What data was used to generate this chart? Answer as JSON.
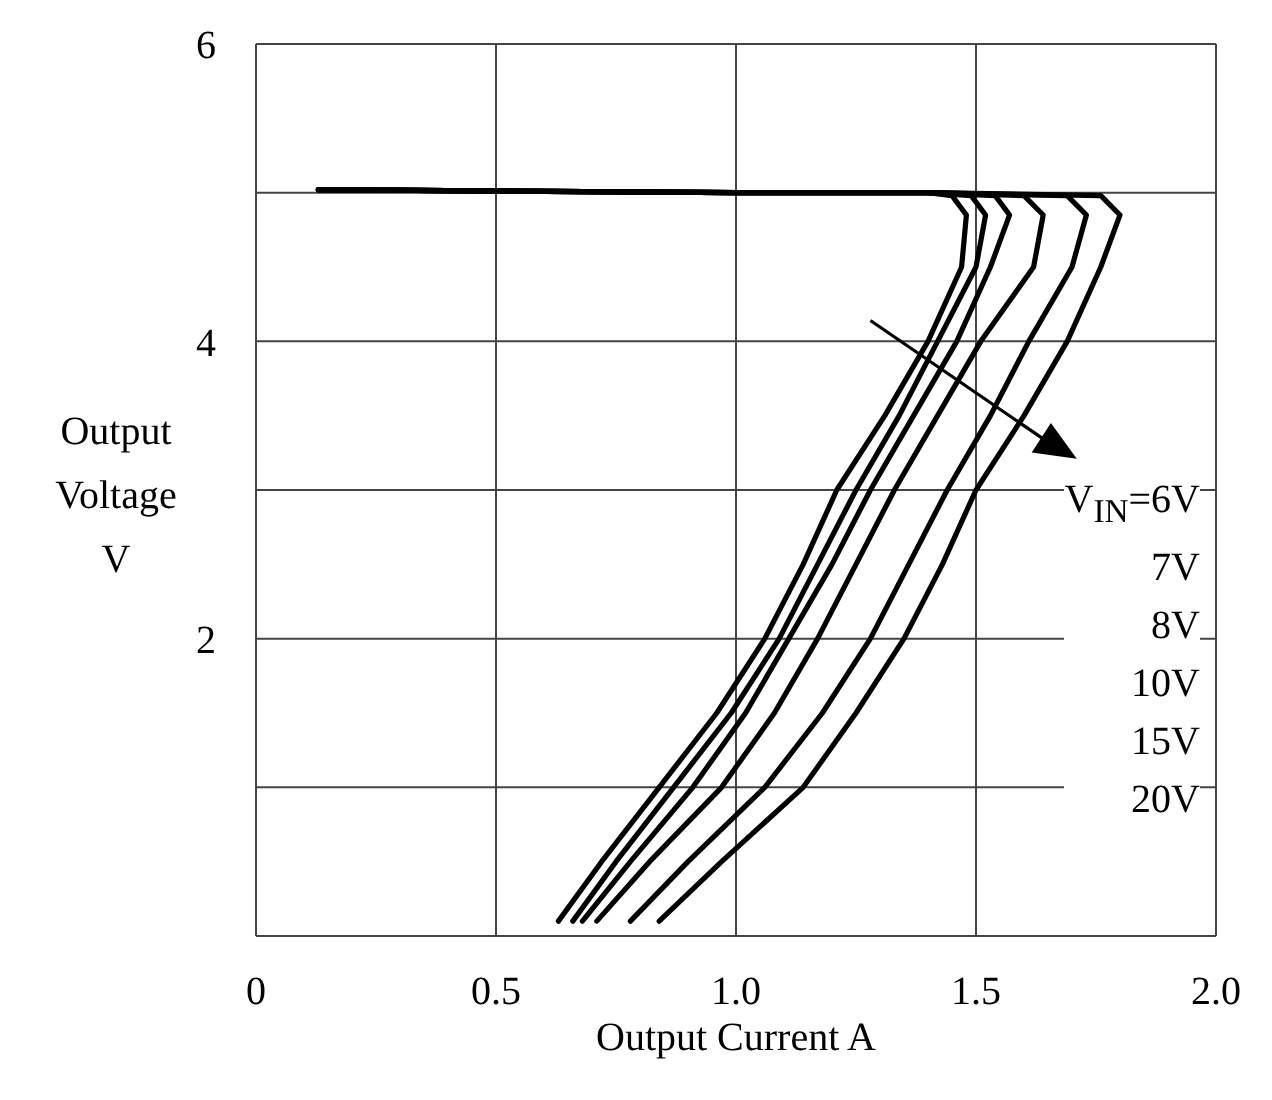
{
  "chart_data": {
    "type": "line",
    "xlabel": "Output Current A",
    "ylabel": "Output Voltage V",
    "xlim": [
      0,
      2
    ],
    "ylim": [
      0,
      6
    ],
    "xticks": [
      0,
      0.5,
      {
        "value": 1,
        "label": "1.0"
      },
      {
        "value": 1.5,
        "label": "1.5"
      },
      {
        "value": 2,
        "label": "2.0"
      }
    ],
    "yticks": [
      {
        "value": 0,
        "label": null
      },
      {
        "value": 1,
        "label": null
      },
      2,
      {
        "value": 3,
        "label": null
      },
      4,
      {
        "value": 5,
        "label": null
      },
      6
    ],
    "grid": true,
    "legend": "right",
    "series": [
      {
        "name": "V$_{IN}$=6V",
        "color": "#000000",
        "x": [
          0.13,
          1.0,
          1.4,
          1.45,
          1.48,
          1.47,
          1.4,
          1.31,
          1.21,
          1.14,
          1.06,
          0.96,
          0.84,
          0.72,
          0.63
        ],
        "values": [
          5.02,
          5.0,
          5.0,
          4.98,
          4.85,
          4.5,
          4.0,
          3.5,
          3.0,
          2.5,
          2.0,
          1.5,
          1.0,
          0.5,
          0.1
        ]
      },
      {
        "name": "7V",
        "color": "#000000",
        "x": [
          0.13,
          1.0,
          1.4,
          1.49,
          1.52,
          1.5,
          1.42,
          1.34,
          1.25,
          1.17,
          1.09,
          0.99,
          0.87,
          0.75,
          0.66
        ],
        "values": [
          5.02,
          5.0,
          5.0,
          4.98,
          4.85,
          4.5,
          4.0,
          3.5,
          3.0,
          2.5,
          2.0,
          1.5,
          1.0,
          0.5,
          0.1
        ]
      },
      {
        "name": "8V",
        "color": "#000000",
        "x": [
          0.13,
          1.0,
          1.4,
          1.54,
          1.57,
          1.53,
          1.46,
          1.37,
          1.28,
          1.2,
          1.11,
          1.02,
          0.91,
          0.78,
          0.68
        ],
        "values": [
          5.02,
          5.0,
          5.0,
          4.98,
          4.85,
          4.5,
          4.0,
          3.5,
          3.0,
          2.5,
          2.0,
          1.5,
          1.0,
          0.5,
          0.1
        ]
      },
      {
        "name": "10V",
        "color": "#000000",
        "x": [
          0.13,
          1.0,
          1.4,
          1.6,
          1.64,
          1.62,
          1.51,
          1.42,
          1.33,
          1.25,
          1.17,
          1.08,
          0.97,
          0.82,
          0.71
        ],
        "values": [
          5.02,
          5.0,
          5.0,
          4.98,
          4.85,
          4.5,
          4.0,
          3.5,
          3.0,
          2.5,
          2.0,
          1.5,
          1.0,
          0.5,
          0.1
        ]
      },
      {
        "name": "15V",
        "color": "#000000",
        "x": [
          0.13,
          1.0,
          1.4,
          1.69,
          1.73,
          1.7,
          1.61,
          1.53,
          1.44,
          1.36,
          1.28,
          1.18,
          1.06,
          0.9,
          0.78
        ],
        "values": [
          5.02,
          5.0,
          5.0,
          4.98,
          4.85,
          4.5,
          4.0,
          3.5,
          3.0,
          2.5,
          2.0,
          1.5,
          1.0,
          0.5,
          0.1
        ]
      },
      {
        "name": "20V",
        "color": "#000000",
        "x": [
          0.13,
          1.0,
          1.4,
          1.76,
          1.8,
          1.76,
          1.69,
          1.6,
          1.5,
          1.43,
          1.35,
          1.25,
          1.14,
          0.97,
          0.84
        ],
        "values": [
          5.02,
          5.0,
          5.0,
          4.98,
          4.85,
          4.5,
          4.0,
          3.5,
          3.0,
          2.5,
          2.0,
          1.5,
          1.0,
          0.5,
          0.1
        ]
      }
    ]
  }
}
